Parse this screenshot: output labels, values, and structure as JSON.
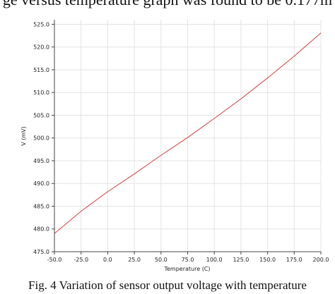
{
  "header_text": "ge versus temperature graph was found to be 0.177m",
  "caption": "Fig. 4 Variation of sensor output voltage with temperature",
  "chart_data": {
    "type": "line",
    "xlabel": "Temperature (C)",
    "ylabel": "V (mV)",
    "xlim": [
      -50,
      200
    ],
    "ylim": [
      475,
      526
    ],
    "x_ticks": [
      "-50.0",
      "-25.0",
      "0.0",
      "25.0",
      "50.0",
      "75.0",
      "100.0",
      "125.0",
      "150.0",
      "175.0",
      "200.0"
    ],
    "y_ticks": [
      "475.0",
      "480.0",
      "485.0",
      "490.0",
      "495.0",
      "500.0",
      "505.0",
      "510.0",
      "515.0",
      "520.0",
      "525.0"
    ],
    "grid": true,
    "line_color": "#d23c3c",
    "series": [
      {
        "x": [
          -50,
          -25,
          0,
          25,
          50,
          75,
          100,
          125,
          150,
          175,
          200
        ],
        "values": [
          479.0,
          483.9,
          488.2,
          492.1,
          496.2,
          500.1,
          504.3,
          508.6,
          513.2,
          518.0,
          523.1
        ]
      }
    ]
  }
}
